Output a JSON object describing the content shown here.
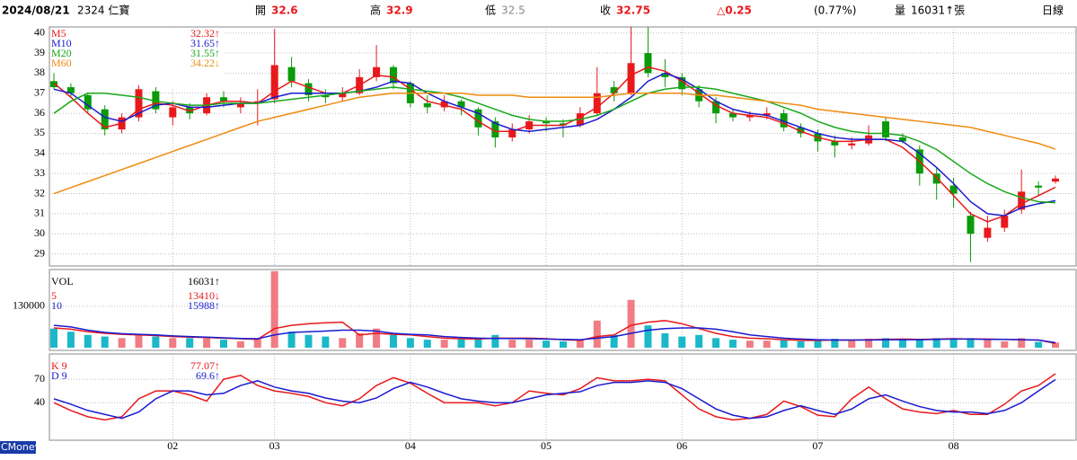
{
  "header": {
    "date": "2024/08/21",
    "stock": "2324 仁寶",
    "open_label": "開",
    "open": "32.6",
    "high_label": "高",
    "high": "32.9",
    "low_label": "低",
    "low": "32.5",
    "close_label": "收",
    "close": "32.75",
    "change": "△0.25",
    "change_pct": "(0.77%)",
    "volume_label": "量",
    "volume": "16031↑張",
    "period": "日線"
  },
  "footer": {
    "brand": "CMoney"
  },
  "chart_data": [
    {
      "type": "candlestick",
      "categories": [
        null,
        null,
        null,
        null,
        null,
        null,
        null,
        "02",
        null,
        null,
        null,
        null,
        null,
        "03",
        null,
        null,
        null,
        null,
        null,
        null,
        null,
        "04",
        null,
        null,
        null,
        null,
        null,
        null,
        null,
        "05",
        null,
        null,
        null,
        null,
        null,
        null,
        null,
        "06",
        null,
        null,
        null,
        null,
        null,
        null,
        null,
        "07",
        null,
        null,
        null,
        null,
        null,
        null,
        null,
        "08",
        null,
        null,
        null,
        null,
        null,
        null
      ],
      "open": [
        37.6,
        37.3,
        36.9,
        36.2,
        35.2,
        35.8,
        37.1,
        35.8,
        36.3,
        36.0,
        36.8,
        36.3,
        36.5,
        36.7,
        38.3,
        37.5,
        36.9,
        36.8,
        37.0,
        37.8,
        38.3,
        37.5,
        36.5,
        36.3,
        36.6,
        36.2,
        35.6,
        34.8,
        35.2,
        35.6,
        35.5,
        35.4,
        36.0,
        37.3,
        37.0,
        39.0,
        38.0,
        37.8,
        37.2,
        36.6,
        36.0,
        35.8,
        35.9,
        36.0,
        35.3,
        35.0,
        34.6,
        34.4,
        34.5,
        35.6,
        34.8,
        34.2,
        33.0,
        32.4,
        30.9,
        29.8,
        30.3,
        31.2,
        32.4,
        32.6
      ],
      "high": [
        38.0,
        37.5,
        37.0,
        36.4,
        36.0,
        37.4,
        37.3,
        36.6,
        36.5,
        37.0,
        37.1,
        36.8,
        37.2,
        40.2,
        38.8,
        37.7,
        37.2,
        37.3,
        38.2,
        39.4,
        38.4,
        37.6,
        36.9,
        36.9,
        36.7,
        36.3,
        35.8,
        35.5,
        35.9,
        35.8,
        35.7,
        36.3,
        38.3,
        37.6,
        40.3,
        40.3,
        38.7,
        38.0,
        37.4,
        36.8,
        36.2,
        36.1,
        36.3,
        36.2,
        35.5,
        35.2,
        34.9,
        34.8,
        35.4,
        35.8,
        35.0,
        34.4,
        33.3,
        32.8,
        31.1,
        30.9,
        31.2,
        33.2,
        32.6,
        32.9
      ],
      "low": [
        37.2,
        36.8,
        36.0,
        34.9,
        35.0,
        35.6,
        36.0,
        35.4,
        35.7,
        35.9,
        36.3,
        36.0,
        35.4,
        36.5,
        37.3,
        36.6,
        36.5,
        36.6,
        36.9,
        37.6,
        37.2,
        36.3,
        36.0,
        36.1,
        35.9,
        34.9,
        34.3,
        34.6,
        35.0,
        35.1,
        34.8,
        35.3,
        35.9,
        36.6,
        36.9,
        37.8,
        37.3,
        36.9,
        36.3,
        35.5,
        35.6,
        35.6,
        35.7,
        35.1,
        34.8,
        34.1,
        33.8,
        34.2,
        34.4,
        34.6,
        34.5,
        32.4,
        31.7,
        31.3,
        28.6,
        29.6,
        30.1,
        31.0,
        31.9,
        32.5
      ],
      "close": [
        37.3,
        37.0,
        36.2,
        35.2,
        35.8,
        37.2,
        36.2,
        36.3,
        36.0,
        36.8,
        36.6,
        36.5,
        36.6,
        38.4,
        37.6,
        36.9,
        36.8,
        37.0,
        37.8,
        38.3,
        37.5,
        36.5,
        36.3,
        36.6,
        36.3,
        35.3,
        34.8,
        35.2,
        35.6,
        35.5,
        35.4,
        36.0,
        37.0,
        37.0,
        38.5,
        38.0,
        37.8,
        37.2,
        36.6,
        36.0,
        35.8,
        35.9,
        36.0,
        35.3,
        35.0,
        34.6,
        34.4,
        34.5,
        34.9,
        34.8,
        34.6,
        33.0,
        32.5,
        32.0,
        30.0,
        30.3,
        30.9,
        32.1,
        32.3,
        32.75
      ],
      "up_color": "#e8191b",
      "down_color": "#0a9a0a",
      "series": [
        {
          "name": "M5",
          "color": "#e8191b",
          "legend_label": "32.32↑",
          "values": [
            37.5,
            36.8,
            36.0,
            35.3,
            35.5,
            36.2,
            36.5,
            36.4,
            36.1,
            36.4,
            36.6,
            36.6,
            36.5,
            37.1,
            37.6,
            37.3,
            37.0,
            37.0,
            37.4,
            37.9,
            37.8,
            37.2,
            36.6,
            36.4,
            36.2,
            35.6,
            35.1,
            35.1,
            35.4,
            35.4,
            35.4,
            35.8,
            36.3,
            37.0,
            37.9,
            38.3,
            38.1,
            37.6,
            37.0,
            36.4,
            36.0,
            35.9,
            35.8,
            35.5,
            35.1,
            34.8,
            34.6,
            34.6,
            34.7,
            34.7,
            34.3,
            33.6,
            32.8,
            31.9,
            31.0,
            30.6,
            30.9,
            31.5,
            31.9,
            32.32
          ]
        },
        {
          "name": "M10",
          "color": "#1a1ad0",
          "legend_label": "31.65↑",
          "values": [
            37.2,
            37.0,
            36.4,
            35.8,
            35.6,
            36.0,
            36.4,
            36.5,
            36.3,
            36.3,
            36.4,
            36.5,
            36.5,
            36.8,
            37.0,
            37.0,
            37.0,
            37.0,
            37.1,
            37.3,
            37.6,
            37.5,
            37.0,
            36.6,
            36.3,
            36.0,
            35.5,
            35.2,
            35.1,
            35.2,
            35.3,
            35.4,
            35.7,
            36.2,
            36.8,
            37.6,
            38.0,
            37.7,
            37.2,
            36.6,
            36.2,
            36.0,
            35.9,
            35.6,
            35.3,
            35.0,
            34.8,
            34.7,
            34.7,
            34.7,
            34.6,
            34.0,
            33.3,
            32.5,
            31.6,
            31.0,
            30.9,
            31.3,
            31.5,
            31.65
          ]
        },
        {
          "name": "M20",
          "color": "#19a81a",
          "legend_label": "31.55↑",
          "values": [
            36.0,
            36.6,
            37.0,
            37.0,
            36.9,
            36.8,
            36.6,
            36.5,
            36.4,
            36.4,
            36.5,
            36.5,
            36.5,
            36.6,
            36.7,
            36.8,
            36.9,
            37.0,
            37.1,
            37.2,
            37.3,
            37.2,
            37.1,
            37.0,
            36.8,
            36.5,
            36.2,
            35.9,
            35.7,
            35.6,
            35.6,
            35.7,
            35.9,
            36.2,
            36.6,
            37.0,
            37.2,
            37.3,
            37.3,
            37.2,
            37.0,
            36.8,
            36.6,
            36.3,
            36.0,
            35.6,
            35.3,
            35.1,
            35.0,
            35.0,
            34.9,
            34.6,
            34.2,
            33.6,
            33.0,
            32.5,
            32.1,
            31.8,
            31.6,
            31.55
          ]
        },
        {
          "name": "M60",
          "color": "#f08a10",
          "legend_label": "34.22↓",
          "values": [
            32.0,
            32.3,
            32.6,
            32.9,
            33.2,
            33.5,
            33.8,
            34.1,
            34.4,
            34.7,
            35.0,
            35.3,
            35.6,
            35.8,
            36.0,
            36.2,
            36.4,
            36.6,
            36.8,
            36.9,
            37.0,
            37.0,
            37.0,
            37.0,
            37.0,
            36.9,
            36.9,
            36.9,
            36.8,
            36.8,
            36.8,
            36.8,
            36.8,
            36.9,
            37.0,
            37.0,
            37.0,
            37.0,
            36.9,
            36.9,
            36.8,
            36.7,
            36.6,
            36.5,
            36.4,
            36.2,
            36.1,
            36.0,
            35.9,
            35.8,
            35.7,
            35.6,
            35.5,
            35.4,
            35.3,
            35.1,
            34.9,
            34.7,
            34.5,
            34.22
          ]
        }
      ],
      "ylim": [
        28.4,
        40.3
      ],
      "yticks": [
        29,
        30,
        31,
        32,
        33,
        34,
        35,
        36,
        37,
        38,
        39,
        40
      ],
      "grid": true
    },
    {
      "type": "volume",
      "title": "VOL",
      "title_label": "16031↑",
      "up_color": "#f07c84",
      "down_color": "#1ab8c8",
      "values": [
        60000,
        50000,
        40000,
        35000,
        30000,
        40000,
        35000,
        30000,
        30000,
        30000,
        25000,
        20000,
        30000,
        240000,
        50000,
        40000,
        35000,
        30000,
        45000,
        60000,
        40000,
        30000,
        25000,
        25000,
        28000,
        30000,
        40000,
        25000,
        25000,
        22000,
        20000,
        25000,
        85000,
        40000,
        150000,
        70000,
        45000,
        35000,
        40000,
        30000,
        25000,
        22000,
        22000,
        25000,
        20000,
        25000,
        28000,
        22000,
        28000,
        30000,
        25000,
        25000,
        30000,
        25000,
        30000,
        25000,
        20000,
        30000,
        18000,
        16031
      ],
      "series": [
        {
          "name": "5",
          "color": "#e8191b",
          "legend_label": "13410↓",
          "values": [
            62000,
            58000,
            50000,
            45000,
            42000,
            40000,
            38000,
            35000,
            33000,
            32000,
            30000,
            28000,
            26000,
            60000,
            70000,
            75000,
            78000,
            80000,
            40000,
            45000,
            42000,
            40000,
            35000,
            30000,
            28000,
            27000,
            30000,
            30000,
            30000,
            28000,
            25000,
            23000,
            35000,
            40000,
            70000,
            80000,
            85000,
            75000,
            60000,
            45000,
            35000,
            30000,
            28000,
            25000,
            23000,
            23000,
            24000,
            24000,
            25000,
            26000,
            27000,
            26000,
            27000,
            28000,
            27000,
            27000,
            26000,
            25000,
            24000,
            13410
          ]
        },
        {
          "name": "10",
          "color": "#1a1ad0",
          "legend_label": "15988↑",
          "values": [
            70000,
            65000,
            55000,
            48000,
            44000,
            42000,
            40000,
            37000,
            35000,
            33000,
            31000,
            29000,
            28000,
            40000,
            48000,
            50000,
            52000,
            55000,
            55000,
            52000,
            45000,
            42000,
            40000,
            35000,
            32000,
            30000,
            29000,
            29000,
            28000,
            27000,
            26000,
            25000,
            30000,
            35000,
            45000,
            55000,
            60000,
            62000,
            62000,
            58000,
            50000,
            40000,
            35000,
            30000,
            27000,
            25000,
            24000,
            24000,
            24000,
            25000,
            25000,
            25000,
            26000,
            27000,
            27000,
            26000,
            26000,
            25000,
            24000,
            15988
          ]
        }
      ],
      "ylim": [
        0,
        245000
      ],
      "yticks": [
        130000
      ],
      "grid": true
    },
    {
      "type": "line",
      "series": [
        {
          "name": "K 9",
          "color": "#e8191b",
          "legend_label": "77.07↑",
          "values": [
            40,
            30,
            22,
            18,
            22,
            45,
            55,
            55,
            50,
            42,
            70,
            75,
            62,
            55,
            52,
            48,
            40,
            36,
            45,
            62,
            72,
            65,
            52,
            40,
            40,
            40,
            36,
            40,
            55,
            52,
            50,
            58,
            72,
            68,
            68,
            70,
            68,
            50,
            32,
            22,
            18,
            20,
            25,
            42,
            35,
            24,
            22,
            45,
            60,
            45,
            32,
            28,
            26,
            30,
            25,
            25,
            38,
            55,
            62,
            77.07
          ]
        },
        {
          "name": "D 9",
          "color": "#1a1ad0",
          "legend_label": "69.6↑",
          "values": [
            45,
            38,
            30,
            25,
            20,
            28,
            45,
            55,
            55,
            50,
            52,
            62,
            68,
            60,
            55,
            52,
            46,
            42,
            40,
            46,
            58,
            66,
            60,
            52,
            45,
            42,
            40,
            40,
            45,
            50,
            52,
            54,
            62,
            66,
            66,
            68,
            66,
            58,
            45,
            32,
            24,
            20,
            22,
            30,
            36,
            30,
            25,
            32,
            45,
            50,
            42,
            35,
            30,
            28,
            28,
            26,
            30,
            40,
            55,
            69.6
          ]
        }
      ],
      "ylim": [
        0,
        100
      ],
      "yticks": [
        40,
        70
      ],
      "grid": true
    }
  ]
}
